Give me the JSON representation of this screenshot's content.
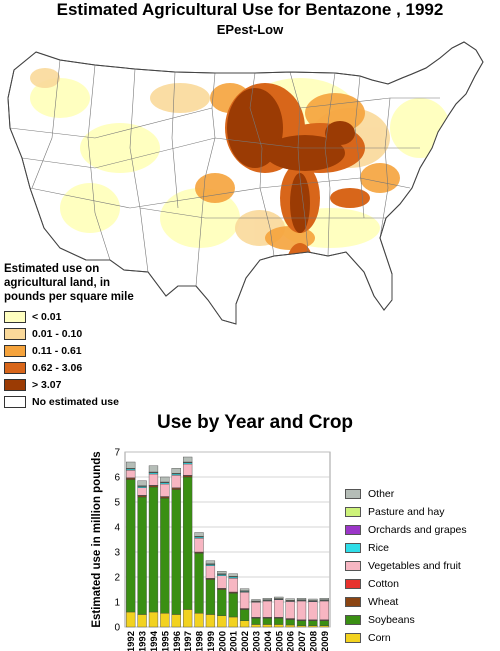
{
  "header": {
    "title": "Estimated Agricultural Use for Bentazone , 1992",
    "subtitle": "EPest-Low"
  },
  "map_legend": {
    "title": "Estimated use on agricultural land, in pounds per square mile",
    "items": [
      {
        "label": "< 0.01",
        "color": "#ffffc0"
      },
      {
        "label": "0.01 - 0.10",
        "color": "#fad99a"
      },
      {
        "label": "0.11 - 0.61",
        "color": "#f5a33c"
      },
      {
        "label": "0.62 - 3.06",
        "color": "#d8661a"
      },
      {
        "label": "> 3.07",
        "color": "#9b3b04"
      },
      {
        "label": "No estimated use",
        "color": "#ffffff"
      }
    ]
  },
  "chart_data": {
    "type": "bar",
    "stacked": true,
    "title": "Use by Year and Crop",
    "xlabel": "",
    "ylabel": "Estimated use in million pounds",
    "ylim": [
      0,
      7
    ],
    "yticks": [
      0,
      1,
      2,
      3,
      4,
      5,
      6,
      7
    ],
    "grid": true,
    "legend_position": "right",
    "categories": [
      "1992",
      "1993",
      "1994",
      "1995",
      "1996",
      "1997",
      "1998",
      "1999",
      "2000",
      "2001",
      "2002",
      "2003",
      "2004",
      "2005",
      "2006",
      "2007",
      "2008",
      "2009"
    ],
    "series": [
      {
        "name": "Corn",
        "color": "#f2d21f",
        "values": [
          0.6,
          0.5,
          0.6,
          0.55,
          0.5,
          0.7,
          0.55,
          0.5,
          0.45,
          0.4,
          0.25,
          0.1,
          0.1,
          0.1,
          0.08,
          0.05,
          0.05,
          0.05
        ]
      },
      {
        "name": "Soybeans",
        "color": "#3a8f13",
        "values": [
          5.3,
          4.7,
          5.0,
          4.6,
          5.0,
          5.3,
          2.4,
          1.4,
          1.05,
          0.95,
          0.45,
          0.25,
          0.25,
          0.25,
          0.22,
          0.2,
          0.2,
          0.2
        ]
      },
      {
        "name": "Wheat",
        "color": "#8b4513",
        "values": [
          0.05,
          0.05,
          0.05,
          0.05,
          0.05,
          0.05,
          0.03,
          0.03,
          0.03,
          0.03,
          0.02,
          0.02,
          0.02,
          0.02,
          0.02,
          0.02,
          0.02,
          0.02
        ]
      },
      {
        "name": "Cotton",
        "color": "#e8322d",
        "values": [
          0.02,
          0.02,
          0.02,
          0.02,
          0.02,
          0.02,
          0.02,
          0.02,
          0.02,
          0.02,
          0.02,
          0.02,
          0.02,
          0.02,
          0.02,
          0.02,
          0.02,
          0.02
        ]
      },
      {
        "name": "Vegetables and fruit",
        "color": "#f7b6c2",
        "values": [
          0.3,
          0.3,
          0.45,
          0.5,
          0.5,
          0.45,
          0.55,
          0.5,
          0.5,
          0.55,
          0.65,
          0.6,
          0.65,
          0.7,
          0.68,
          0.75,
          0.72,
          0.75
        ]
      },
      {
        "name": "Rice",
        "color": "#2fdde8",
        "values": [
          0.05,
          0.05,
          0.05,
          0.05,
          0.05,
          0.05,
          0.05,
          0.05,
          0.05,
          0.05,
          0.03,
          0.02,
          0.02,
          0.02,
          0.02,
          0.02,
          0.02,
          0.02
        ]
      },
      {
        "name": "Orchards and grapes",
        "color": "#9b36c8",
        "values": [
          0.01,
          0.01,
          0.01,
          0.01,
          0.01,
          0.01,
          0.01,
          0.01,
          0.01,
          0.01,
          0.01,
          0.01,
          0.01,
          0.01,
          0.01,
          0.01,
          0.01,
          0.01
        ]
      },
      {
        "name": "Pasture and hay",
        "color": "#cdf27a",
        "values": [
          0.02,
          0.02,
          0.02,
          0.02,
          0.02,
          0.02,
          0.02,
          0.02,
          0.02,
          0.02,
          0.02,
          0.02,
          0.02,
          0.02,
          0.02,
          0.02,
          0.02,
          0.02
        ]
      },
      {
        "name": "Other",
        "color": "#b5bdb7",
        "values": [
          0.25,
          0.2,
          0.25,
          0.2,
          0.2,
          0.2,
          0.15,
          0.12,
          0.1,
          0.1,
          0.08,
          0.06,
          0.06,
          0.06,
          0.06,
          0.06,
          0.06,
          0.06
        ]
      }
    ]
  }
}
